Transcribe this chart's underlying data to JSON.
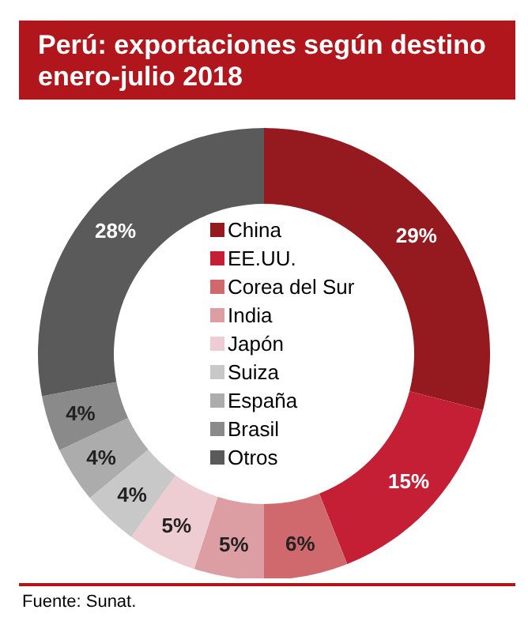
{
  "chart_data": {
    "type": "donut",
    "title": "Perú: exportaciones según destino enero-julio 2018",
    "categories": [
      "China",
      "EE.UU.",
      "Corea del Sur",
      "India",
      "Japón",
      "Suiza",
      "España",
      "Brasil",
      "Otros"
    ],
    "values": [
      29,
      15,
      6,
      5,
      5,
      4,
      4,
      4,
      28
    ],
    "colors": [
      "#951a1f",
      "#c41f35",
      "#d0696e",
      "#dc9ea3",
      "#edcdd1",
      "#c8c8c8",
      "#acacac",
      "#8a8a8a",
      "#5a5a5a"
    ],
    "value_labels": [
      "29%",
      "15%",
      "6%",
      "5%",
      "5%",
      "4%",
      "4%",
      "4%",
      "28%"
    ],
    "legend": "center",
    "annotations": [
      "Fuente: Sunat."
    ]
  }
}
